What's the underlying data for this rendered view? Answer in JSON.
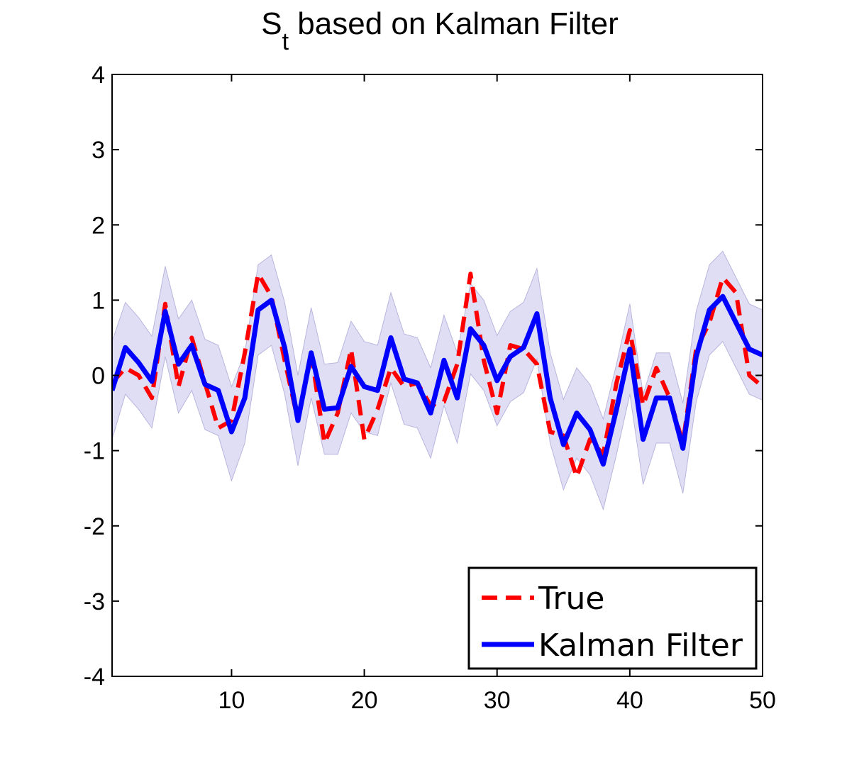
{
  "chart_data": {
    "type": "line",
    "title": {
      "main": "S",
      "subscript": "t",
      "rest": " based on Kalman Filter"
    },
    "xlabel": "",
    "ylabel": "",
    "xlim": [
      1,
      50
    ],
    "ylim": [
      -4,
      4
    ],
    "xticks": [
      10,
      20,
      30,
      40,
      50
    ],
    "yticks": [
      4,
      3,
      2,
      1,
      0,
      -1,
      -2,
      -3,
      -4
    ],
    "grid": false,
    "legend_position": "bottom-right",
    "x": [
      1,
      2,
      3,
      4,
      5,
      6,
      7,
      8,
      9,
      10,
      11,
      12,
      13,
      14,
      15,
      16,
      17,
      18,
      19,
      20,
      21,
      22,
      23,
      24,
      25,
      26,
      27,
      28,
      29,
      30,
      31,
      32,
      33,
      34,
      35,
      36,
      37,
      38,
      39,
      40,
      41,
      42,
      43,
      44,
      45,
      46,
      47,
      48,
      49,
      50
    ],
    "series": [
      {
        "name": "True",
        "style": "dashed",
        "color": "#ff0000",
        "values": [
          -0.1,
          0.1,
          0.0,
          -0.3,
          0.95,
          -0.15,
          0.5,
          -0.1,
          -0.7,
          -0.6,
          0.3,
          1.35,
          1.05,
          0.2,
          -0.6,
          0.3,
          -0.9,
          -0.5,
          0.35,
          -0.85,
          -0.45,
          0.1,
          -0.15,
          -0.1,
          -0.4,
          -0.35,
          0.15,
          1.35,
          0.2,
          -0.5,
          0.4,
          0.35,
          0.15,
          -0.75,
          -0.8,
          -1.35,
          -0.85,
          -1.05,
          -0.1,
          0.6,
          -0.4,
          0.1,
          -0.3,
          -0.9,
          0.35,
          0.7,
          1.3,
          1.1,
          0.0,
          -0.15
        ]
      },
      {
        "name": "Kalman Filter",
        "style": "solid",
        "color": "#0000ff",
        "values": [
          -0.2,
          0.37,
          0.17,
          -0.08,
          0.85,
          0.15,
          0.4,
          -0.12,
          -0.2,
          -0.75,
          -0.3,
          0.87,
          1.0,
          0.37,
          -0.6,
          0.3,
          -0.45,
          -0.43,
          0.12,
          -0.15,
          -0.2,
          0.5,
          -0.05,
          -0.1,
          -0.5,
          0.2,
          -0.3,
          0.62,
          0.4,
          -0.07,
          0.25,
          0.37,
          0.82,
          -0.3,
          -0.92,
          -0.5,
          -0.72,
          -1.18,
          -0.45,
          0.35,
          -0.85,
          -0.3,
          -0.3,
          -0.97,
          0.25,
          0.87,
          1.05,
          0.7,
          0.35,
          0.27
        ]
      }
    ],
    "band": {
      "color": "#e0def5",
      "edge_color": "#b8b5dc",
      "lower": [
        -0.85,
        -0.25,
        -0.45,
        -0.7,
        0.25,
        -0.5,
        -0.2,
        -0.72,
        -0.8,
        -1.4,
        -0.9,
        0.27,
        0.4,
        -0.25,
        -1.2,
        -0.3,
        -1.05,
        -1.05,
        -0.5,
        -0.75,
        -0.8,
        -0.1,
        -0.65,
        -0.7,
        -1.1,
        -0.4,
        -0.9,
        0.02,
        -0.2,
        -0.67,
        -0.35,
        -0.23,
        0.22,
        -0.9,
        -1.52,
        -1.1,
        -1.32,
        -1.78,
        -1.05,
        -0.25,
        -1.45,
        -0.9,
        -0.9,
        -1.57,
        -0.35,
        0.27,
        0.45,
        0.1,
        -0.25,
        -0.33
      ],
      "upper": [
        0.45,
        0.97,
        0.77,
        0.52,
        1.45,
        0.75,
        1.0,
        0.48,
        0.4,
        -0.15,
        0.3,
        1.47,
        1.6,
        0.97,
        0.0,
        0.9,
        0.15,
        0.17,
        0.72,
        0.45,
        0.4,
        1.1,
        0.55,
        0.5,
        0.1,
        0.8,
        0.3,
        1.22,
        1.0,
        0.53,
        0.85,
        0.97,
        1.42,
        0.3,
        -0.32,
        0.1,
        -0.12,
        -0.58,
        0.15,
        0.95,
        -0.25,
        0.3,
        0.3,
        -0.37,
        0.85,
        1.47,
        1.65,
        1.3,
        0.95,
        0.87
      ]
    }
  }
}
